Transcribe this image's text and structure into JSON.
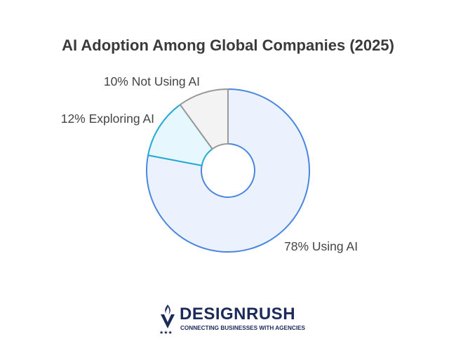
{
  "chart_data": {
    "type": "pie",
    "title": "AI Adoption Among Global Companies (2025)",
    "donut": true,
    "slices": [
      {
        "label": "78% Using AI",
        "value": 78,
        "fill": "#ebf2fd",
        "stroke": "#4a86e0"
      },
      {
        "label": "12% Exploring AI",
        "value": 12,
        "fill": "#e6f7fd",
        "stroke": "#22aad2"
      },
      {
        "label": "10% Not Using AI",
        "value": 10,
        "fill": "#f3f3f3",
        "stroke": "#999999"
      }
    ],
    "start": "top",
    "direction": "clockwise"
  },
  "logo": {
    "name": "DESIGNRUSH",
    "tagline": "CONNECTING BUSINESSES WITH AGENCIES",
    "color": "#1c2a5a"
  }
}
